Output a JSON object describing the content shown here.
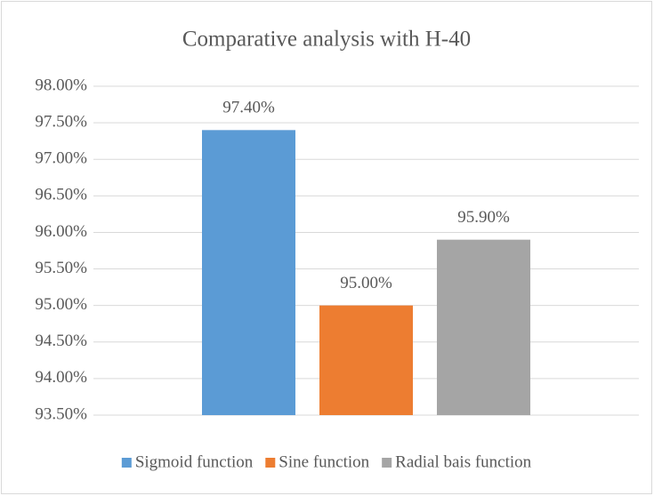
{
  "chart_data": {
    "type": "bar",
    "title": "Comparative analysis with H-40",
    "categories": [
      "Sigmoid function",
      "Sine function",
      "Radial bais function"
    ],
    "values": [
      97.4,
      95.0,
      95.9
    ],
    "value_labels": [
      "97.40%",
      "95.00%",
      "95.90%"
    ],
    "colors": [
      "#5b9bd5",
      "#ed7d31",
      "#a5a5a5"
    ],
    "ylim": [
      93.5,
      98
    ],
    "yticks": [
      {
        "value": 93.5,
        "label": "93.50%"
      },
      {
        "value": 94,
        "label": "94.00%"
      },
      {
        "value": 94.5,
        "label": "94.50%"
      },
      {
        "value": 95,
        "label": "95.00%"
      },
      {
        "value": 95.5,
        "label": "95.50%"
      },
      {
        "value": 96,
        "label": "96.00%"
      },
      {
        "value": 96.5,
        "label": "96.50%"
      },
      {
        "value": 97,
        "label": "97.00%"
      },
      {
        "value": 97.5,
        "label": "97.50%"
      },
      {
        "value": 98,
        "label": "98.00%"
      }
    ],
    "grid": true,
    "legend": "bottom"
  }
}
